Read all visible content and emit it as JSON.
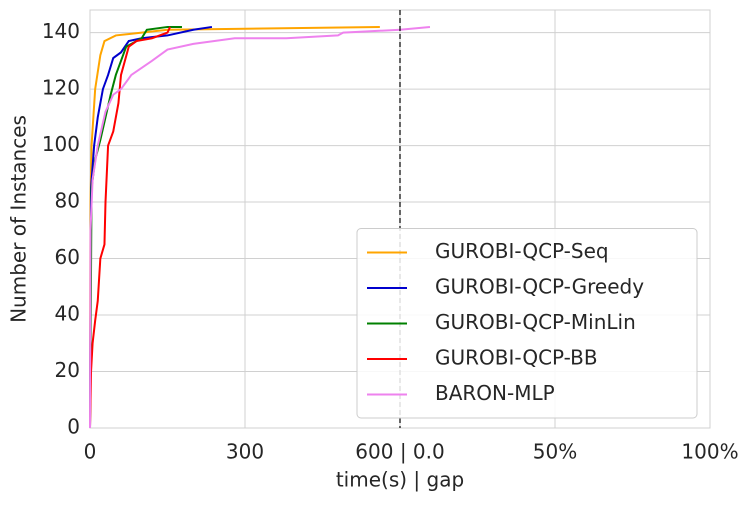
{
  "chart_data": {
    "type": "line",
    "xlabel": "time(s) | gap",
    "ylabel": "Number of Instances",
    "xlim": [
      0,
      1200
    ],
    "ylim": [
      0,
      148
    ],
    "xticks": [
      0,
      300,
      {
        "value": 600,
        "label": "600 | 0.0"
      },
      {
        "value": 900,
        "label": "50%"
      },
      {
        "value": 1200,
        "label": "100%"
      }
    ],
    "yticks": [
      0,
      20,
      40,
      60,
      80,
      100,
      120,
      140
    ],
    "grid": true,
    "vline": 600,
    "legend": "lower right",
    "series": [
      {
        "name": "GUROBI-QCP-Seq",
        "color": "#ffa500",
        "x": [
          0,
          1,
          3,
          10,
          20,
          28,
          50,
          100,
          150,
          561
        ],
        "values": [
          0,
          80,
          100,
          120,
          132,
          137,
          139,
          140,
          141,
          142
        ]
      },
      {
        "name": "GUROBI-QCP-Greedy",
        "color": "#0000cd",
        "x": [
          0,
          2,
          8,
          15,
          25,
          35,
          45,
          60,
          75,
          100,
          150,
          200,
          236
        ],
        "values": [
          0,
          85,
          100,
          110,
          120,
          125,
          131,
          133,
          137,
          138,
          139,
          141,
          142
        ]
      },
      {
        "name": "GUROBI-QCP-MinLin",
        "color": "#008000",
        "x": [
          0,
          3,
          10,
          20,
          30,
          40,
          50,
          60,
          70,
          100,
          110,
          150,
          178
        ],
        "values": [
          0,
          85,
          95,
          102,
          110,
          118,
          125,
          130,
          135,
          138,
          141,
          142,
          142
        ]
      },
      {
        "name": "GUROBI-QCP-BB",
        "color": "#ff0000",
        "x": [
          0,
          2,
          5,
          10,
          15,
          20,
          28,
          30,
          35,
          45,
          55,
          60,
          75,
          90,
          120,
          150,
          155
        ],
        "values": [
          0,
          20,
          30,
          38,
          45,
          60,
          65,
          80,
          100,
          105,
          115,
          125,
          135,
          137,
          138,
          140,
          142
        ]
      },
      {
        "name": "BARON-MLP",
        "color": "#ee82ee",
        "x": [
          0,
          1,
          5,
          15,
          30,
          45,
          60,
          80,
          120,
          150,
          200,
          280,
          380,
          480,
          490,
          600,
          658
        ],
        "values": [
          0,
          70,
          88,
          100,
          112,
          118,
          120,
          125,
          130,
          134,
          136,
          138,
          138,
          139,
          140,
          141,
          142
        ]
      }
    ]
  }
}
